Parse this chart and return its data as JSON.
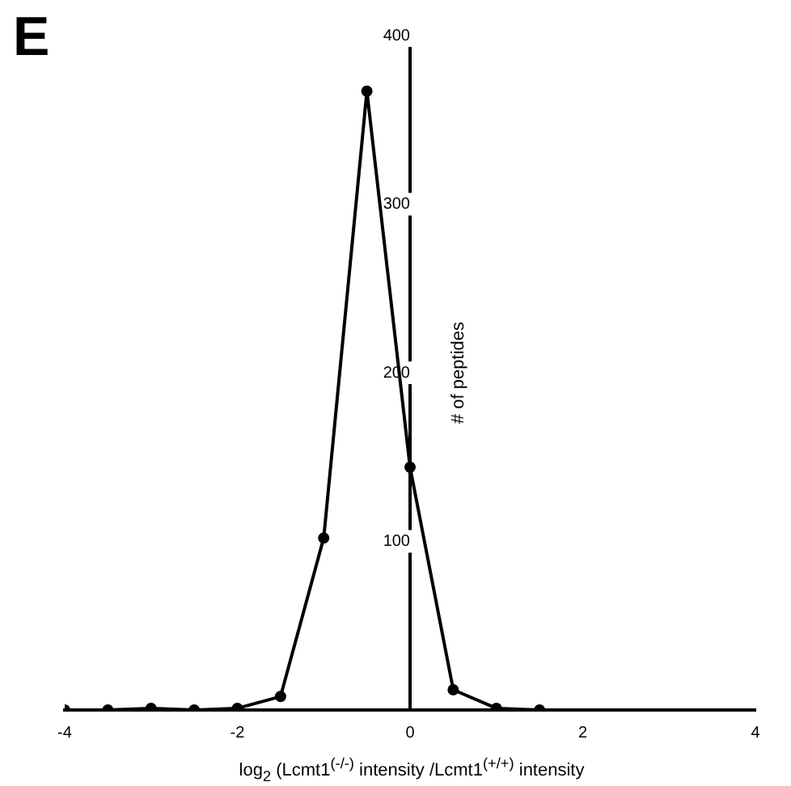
{
  "chart_data": {
    "type": "line",
    "annotations": [
      "E"
    ],
    "xlabel": "log$_{2}$ (Lcmt1$^{(-/-)}$ intensity /Lcmt1$^{(+/+)}$ intensity",
    "ylabel": "# of peptides",
    "x": [
      -4,
      -3.5,
      -3,
      -2.5,
      -2,
      -1.5,
      -1,
      -0.5,
      0,
      0.5,
      1,
      1.5
    ],
    "series": [
      {
        "color": "#000000",
        "values": [
          0,
          0,
          1,
          0,
          1,
          8,
          102,
          367,
          144,
          12,
          1,
          0
        ]
      }
    ],
    "xlim": [
      -4,
      4
    ],
    "xticks": [
      -4,
      -2,
      0,
      2,
      4
    ],
    "ylim": [
      0,
      400
    ],
    "yticks": [
      100,
      200,
      300,
      400
    ],
    "grid": false,
    "legend": false,
    "marker": "circle",
    "line_style": "solid"
  }
}
